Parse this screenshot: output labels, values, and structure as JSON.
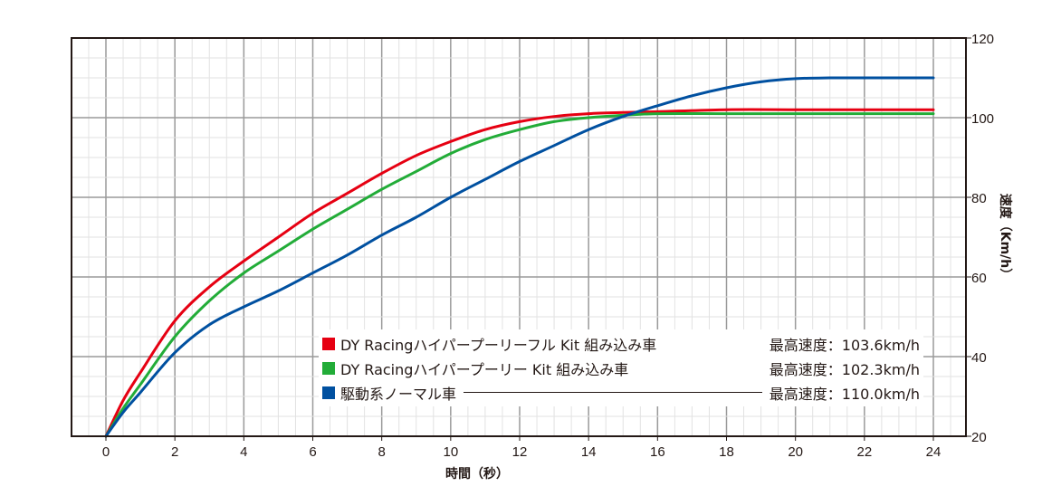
{
  "chart_data": {
    "type": "line",
    "title": "",
    "xlabel": "時間（秒）",
    "ylabel": "速度（Km/h）",
    "xlim": [
      -1,
      24.8
    ],
    "ylim": [
      20,
      120
    ],
    "x_ticks": [
      0,
      2,
      4,
      6,
      8,
      10,
      12,
      14,
      16,
      18,
      20,
      22,
      24
    ],
    "y_ticks": [
      20,
      40,
      60,
      80,
      100,
      120
    ],
    "grid": {
      "major_x": 2,
      "minor_x": 0.5,
      "major_y": 20,
      "minor_y": 5
    },
    "legend_position": "lower-right inside",
    "series": [
      {
        "name": "DY Racingハイパープーリーフルキット組み込み車",
        "color": "#e60012",
        "x": [
          0,
          0.5,
          1,
          2,
          3,
          4,
          5,
          6,
          7,
          8,
          9,
          10,
          11,
          12,
          13,
          14,
          15,
          16,
          18,
          20,
          22,
          24
        ],
        "values": [
          20,
          29,
          36,
          49,
          57.5,
          64,
          70,
          76,
          81,
          86,
          90.5,
          94,
          97,
          99,
          100.3,
          101,
          101.3,
          101.5,
          102,
          102,
          102,
          102
        ]
      },
      {
        "name": "DY Racingハイパープーリーキット組み込み車",
        "color": "#22ac38",
        "x": [
          0,
          0.5,
          1,
          2,
          3,
          4,
          5,
          6,
          7,
          8,
          9,
          10,
          11,
          12,
          13,
          14,
          15,
          16,
          18,
          20,
          22,
          24
        ],
        "values": [
          20,
          27,
          33,
          45,
          54,
          61,
          66.5,
          72,
          77,
          82,
          86.5,
          91,
          94.5,
          97,
          99,
          100,
          100.6,
          101,
          101,
          101,
          101,
          101
        ]
      },
      {
        "name": "駆動系ノーマル車",
        "color": "#0050a0",
        "x": [
          0,
          0.5,
          1,
          2,
          3,
          4,
          5,
          6,
          7,
          8,
          9,
          10,
          11,
          12,
          13,
          14,
          15,
          16,
          17,
          18,
          19,
          20,
          21,
          22,
          24
        ],
        "values": [
          20,
          26,
          31,
          41,
          48,
          52.5,
          56.5,
          61,
          65.5,
          70.5,
          75,
          80,
          84.5,
          89,
          93,
          97,
          100.3,
          103,
          105.5,
          107.5,
          109,
          109.8,
          110,
          110,
          110
        ]
      }
    ]
  },
  "axes": {
    "xlabel": "時間（秒）",
    "ylabel": "速度（Km/h）"
  },
  "legend": {
    "items": [
      {
        "label": "DY Racingハイパープーリーフル Kit 組み込み車",
        "value": "最高速度：103.6km/h",
        "color": "#e60012",
        "line": false
      },
      {
        "label": "DY Racingハイパープーリー Kit 組み込み車",
        "value": "最高速度：102.3km/h",
        "color": "#22ac38",
        "line": false
      },
      {
        "label": "駆動系ノーマル車",
        "value": "最高速度：110.0km/h",
        "color": "#0050a0",
        "line": true
      }
    ]
  }
}
